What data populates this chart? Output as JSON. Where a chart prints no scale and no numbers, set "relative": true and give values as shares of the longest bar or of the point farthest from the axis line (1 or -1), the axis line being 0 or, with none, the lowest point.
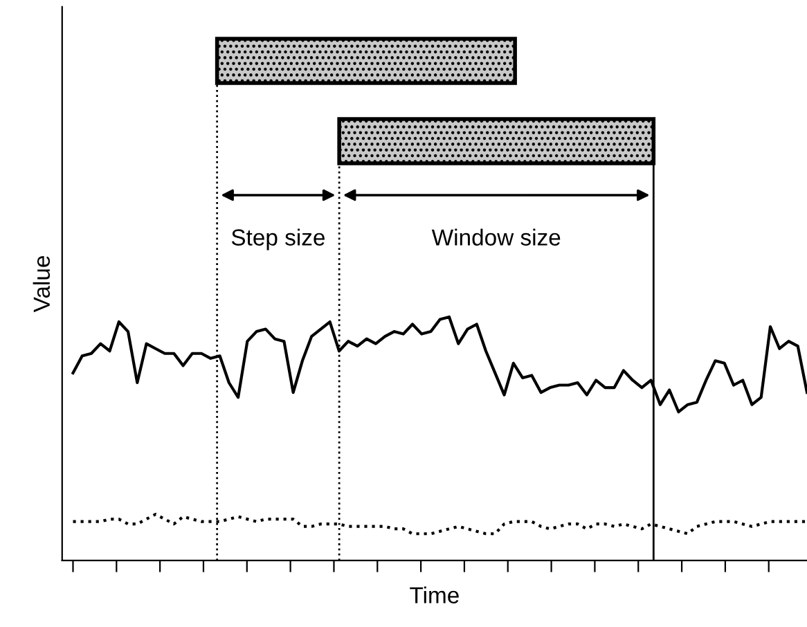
{
  "chart_data": {
    "type": "line",
    "relative": true,
    "xlabel": "Time",
    "ylabel": "Value",
    "annotations": [
      "Step size",
      "Window size"
    ],
    "categories": [
      null,
      null,
      null,
      null,
      null,
      null,
      null,
      null,
      null,
      null,
      null,
      null,
      null,
      null,
      null,
      null,
      null,
      null,
      null,
      null,
      null,
      null,
      null,
      null,
      null,
      null,
      null,
      null,
      null,
      null,
      null,
      null,
      null,
      null,
      null,
      null,
      null,
      null,
      null,
      null,
      null,
      null,
      null,
      null,
      null,
      null,
      null,
      null,
      null,
      null,
      null,
      null,
      null,
      null,
      null,
      null,
      null,
      null,
      null,
      null,
      null,
      null,
      null,
      null,
      null,
      null,
      null,
      null,
      null,
      null,
      null,
      null,
      null,
      null,
      null,
      null,
      null,
      null,
      null,
      null,
      null
    ],
    "grid": false,
    "legend": false,
    "marker": "none",
    "series": [
      {
        "color": "#000000",
        "line_style": "solid",
        "values": [
          0.77,
          0.84,
          0.85,
          0.89,
          0.86,
          0.98,
          0.94,
          0.73,
          0.89,
          0.87,
          0.85,
          0.85,
          0.8,
          0.85,
          0.85,
          0.83,
          0.84,
          0.73,
          0.67,
          0.9,
          0.94,
          0.95,
          0.91,
          0.9,
          0.69,
          0.82,
          0.92,
          0.95,
          0.98,
          0.86,
          0.9,
          0.88,
          0.91,
          0.89,
          0.92,
          0.94,
          0.93,
          0.97,
          0.93,
          0.94,
          0.99,
          1.0,
          0.89,
          0.95,
          0.97,
          0.86,
          0.77,
          0.68,
          0.81,
          0.75,
          0.76,
          0.69,
          0.71,
          0.72,
          0.72,
          0.73,
          0.68,
          0.74,
          0.71,
          0.71,
          0.78,
          0.74,
          0.71,
          0.74,
          0.64,
          0.7,
          0.61,
          0.64,
          0.65,
          0.74,
          0.82,
          0.81,
          0.72,
          0.74,
          0.64,
          0.67,
          0.96,
          0.87,
          0.9,
          0.88,
          0.69
        ]
      },
      {
        "color": "#000000",
        "line_style": "dotted",
        "values": [
          0.16,
          0.16,
          0.16,
          0.16,
          0.17,
          0.17,
          0.15,
          0.15,
          0.17,
          0.19,
          0.17,
          0.15,
          0.18,
          0.17,
          0.16,
          0.16,
          0.16,
          0.17,
          0.18,
          0.17,
          0.16,
          0.17,
          0.17,
          0.17,
          0.17,
          0.14,
          0.14,
          0.15,
          0.15,
          0.15,
          0.14,
          0.14,
          0.14,
          0.14,
          0.14,
          0.13,
          0.13,
          0.11,
          0.11,
          0.11,
          0.12,
          0.13,
          0.14,
          0.13,
          0.12,
          0.11,
          0.11,
          0.15,
          0.16,
          0.16,
          0.16,
          0.14,
          0.13,
          0.14,
          0.15,
          0.15,
          0.13,
          0.15,
          0.15,
          0.14,
          0.15,
          0.14,
          0.13,
          0.15,
          0.14,
          0.13,
          0.12,
          0.11,
          0.14,
          0.15,
          0.16,
          0.16,
          0.16,
          0.15,
          0.14,
          0.15,
          0.16,
          0.16,
          0.16,
          0.16,
          0.16
        ]
      }
    ]
  }
}
